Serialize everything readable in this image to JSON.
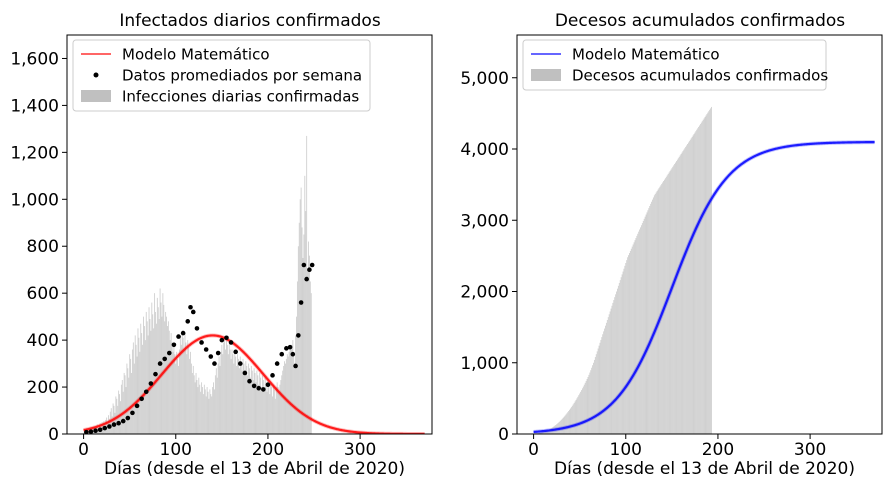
{
  "chart_data": [
    {
      "type": "bar",
      "title": "Infectados diarios confirmados",
      "xlabel": "Días (desde el 13 de Abril de 2020)",
      "ylabel": "",
      "xlim": [
        -18,
        378
      ],
      "ylim": [
        0,
        1700
      ],
      "xticks": [
        0,
        100,
        200,
        300
      ],
      "xtick_labels": [
        "0",
        "100",
        "200",
        "300"
      ],
      "yticks": [
        0,
        200,
        400,
        600,
        800,
        1000,
        1200,
        1400,
        1600
      ],
      "ytick_labels": [
        "0",
        "200",
        "400",
        "600",
        "800",
        "1,000",
        "1,200",
        "1,400",
        "1,600"
      ],
      "legend_position": "top-left",
      "series": [
        {
          "name": "Modelo Matemático",
          "kind": "line",
          "color": "#ff0000",
          "model": {
            "peak_day": 140,
            "peak_value": 420,
            "sigma": 55
          },
          "x_range": [
            0,
            370
          ]
        },
        {
          "name": "Datos promediados por semana",
          "kind": "scatter",
          "color": "#000000",
          "points": [
            [
              3,
              8
            ],
            [
              8,
              10
            ],
            [
              13,
              14
            ],
            [
              18,
              18
            ],
            [
              23,
              25
            ],
            [
              28,
              32
            ],
            [
              33,
              40
            ],
            [
              38,
              46
            ],
            [
              43,
              55
            ],
            [
              48,
              68
            ],
            [
              53,
              90
            ],
            [
              58,
              120
            ],
            [
              63,
              150
            ],
            [
              68,
              180
            ],
            [
              73,
              215
            ],
            [
              78,
              255
            ],
            [
              83,
              300
            ],
            [
              88,
              320
            ],
            [
              93,
              345
            ],
            [
              98,
              380
            ],
            [
              103,
              415
            ],
            [
              108,
              430
            ],
            [
              113,
              480
            ],
            [
              116,
              540
            ],
            [
              119,
              520
            ],
            [
              123,
              450
            ],
            [
              128,
              390
            ],
            [
              133,
              360
            ],
            [
              138,
              330
            ],
            [
              142,
              300
            ],
            [
              146,
              345
            ],
            [
              150,
              400
            ],
            [
              155,
              410
            ],
            [
              160,
              390
            ],
            [
              165,
              350
            ],
            [
              170,
              300
            ],
            [
              175,
              260
            ],
            [
              180,
              225
            ],
            [
              185,
              205
            ],
            [
              190,
              195
            ],
            [
              195,
              190
            ],
            [
              200,
              210
            ],
            [
              205,
              250
            ],
            [
              210,
              300
            ],
            [
              215,
              340
            ],
            [
              220,
              365
            ],
            [
              224,
              370
            ],
            [
              227,
              340
            ],
            [
              230,
              290
            ],
            [
              233,
              420
            ],
            [
              236,
              560
            ],
            [
              239,
              720
            ],
            [
              242,
              660
            ],
            [
              245,
              700
            ],
            [
              248,
              720
            ]
          ]
        },
        {
          "name": "Infecciones diarias confirmadas",
          "kind": "bar",
          "color": "#c0c0c0",
          "x_start": 0,
          "values": [
            5,
            10,
            8,
            15,
            12,
            20,
            14,
            18,
            25,
            16,
            22,
            30,
            28,
            20,
            35,
            40,
            25,
            38,
            45,
            30,
            50,
            42,
            55,
            38,
            60,
            70,
            52,
            80,
            65,
            95,
            110,
            75,
            130,
            120,
            90,
            160,
            150,
            120,
            185,
            170,
            140,
            210,
            230,
            180,
            260,
            250,
            200,
            300,
            280,
            240,
            340,
            320,
            260,
            360,
            390,
            300,
            420,
            380,
            330,
            450,
            410,
            350,
            470,
            430,
            380,
            500,
            460,
            400,
            520,
            480,
            420,
            540,
            490,
            440,
            560,
            510,
            450,
            600,
            520,
            470,
            580,
            540,
            490,
            620,
            560,
            500,
            600,
            550,
            480,
            520,
            500,
            460,
            480,
            440,
            400,
            430,
            390,
            350,
            380,
            340,
            300,
            350,
            320,
            290,
            360,
            420,
            380,
            440,
            410,
            360,
            430,
            390,
            340,
            400,
            370,
            320,
            350,
            300,
            260,
            290,
            250,
            220,
            260,
            230,
            200,
            240,
            210,
            180,
            220,
            200,
            170,
            210,
            190,
            160,
            200,
            180,
            150,
            190,
            170,
            160,
            200,
            220,
            190,
            250,
            280,
            240,
            300,
            330,
            290,
            350,
            380,
            340,
            390,
            410,
            360,
            400,
            380,
            340,
            380,
            360,
            320,
            360,
            340,
            300,
            350,
            330,
            290,
            340,
            320,
            280,
            330,
            310,
            270,
            320,
            300,
            260,
            310,
            290,
            250,
            300,
            280,
            240,
            290,
            270,
            230,
            280,
            260,
            220,
            270,
            250,
            210,
            260,
            240,
            200,
            250,
            230,
            190,
            240,
            220,
            180,
            230,
            210,
            170,
            220,
            200,
            160,
            210,
            190,
            150,
            200,
            220,
            200,
            180,
            210,
            230,
            250,
            270,
            290,
            310,
            300,
            320,
            340,
            330,
            350,
            370,
            360,
            380,
            400,
            350,
            300,
            420,
            500,
            650,
            800,
            900,
            1000,
            1050,
            880,
            750,
            850,
            1100,
            950,
            1270,
            700,
            820,
            760,
            650,
            600
          ]
        }
      ]
    },
    {
      "type": "bar",
      "title": "Decesos acumulados confirmados",
      "xlabel": "Días (desde el 13 de Abril de 2020)",
      "ylabel": "",
      "xlim": [
        -18,
        378
      ],
      "ylim": [
        0,
        5600
      ],
      "xticks": [
        0,
        100,
        200,
        300
      ],
      "xtick_labels": [
        "0",
        "100",
        "200",
        "300"
      ],
      "yticks": [
        0,
        1000,
        2000,
        3000,
        4000,
        5000
      ],
      "ytick_labels": [
        "0",
        "1,000",
        "2,000",
        "3,000",
        "4,000",
        "5,000"
      ],
      "legend_position": "top-left",
      "series": [
        {
          "name": "Modelo Matemático",
          "kind": "line",
          "color": "#0000ff",
          "model": {
            "asymptote": 4100,
            "midpoint_day": 150,
            "rate": 0.033
          },
          "x_range": [
            0,
            370
          ]
        },
        {
          "name": "Decesos acumulados confirmados",
          "kind": "bar",
          "color": "#c0c0c0",
          "x_start": 0,
          "values": [
            2,
            3,
            4,
            6,
            8,
            10,
            12,
            15,
            18,
            22,
            26,
            30,
            35,
            40,
            46,
            52,
            58,
            65,
            72,
            80,
            88,
            97,
            106,
            116,
            126,
            137,
            148,
            160,
            172,
            185,
            198,
            212,
            226,
            241,
            256,
            272,
            288,
            305,
            322,
            340,
            358,
            377,
            396,
            416,
            436,
            457,
            478,
            500,
            522,
            545,
            568,
            592,
            616,
            641,
            666,
            692,
            718,
            745,
            772,
            800,
            830,
            862,
            895,
            930,
            965,
            1000,
            1040,
            1080,
            1120,
            1160,
            1200,
            1240,
            1280,
            1320,
            1360,
            1400,
            1440,
            1480,
            1520,
            1560,
            1600,
            1640,
            1680,
            1720,
            1760,
            1800,
            1840,
            1880,
            1920,
            1960,
            2000,
            2040,
            2080,
            2120,
            2160,
            2200,
            2240,
            2280,
            2320,
            2360,
            2400,
            2440,
            2480,
            2510,
            2540,
            2570,
            2600,
            2630,
            2660,
            2690,
            2720,
            2750,
            2780,
            2810,
            2840,
            2870,
            2900,
            2930,
            2960,
            2990,
            3020,
            3050,
            3080,
            3110,
            3140,
            3170,
            3200,
            3230,
            3260,
            3290,
            3320,
            3350,
            3370,
            3390,
            3410,
            3430,
            3450,
            3470,
            3490,
            3510,
            3530,
            3550,
            3570,
            3590,
            3610,
            3630,
            3650,
            3670,
            3690,
            3710,
            3730,
            3750,
            3770,
            3790,
            3810,
            3830,
            3850,
            3870,
            3890,
            3910,
            3930,
            3950,
            3970,
            3990,
            4010,
            4030,
            4050,
            4070,
            4090,
            4110,
            4130,
            4150,
            4170,
            4190,
            4210,
            4230,
            4250,
            4270,
            4290,
            4310,
            4330,
            4350,
            4370,
            4390,
            4410,
            4430,
            4450,
            4470,
            4490,
            4510,
            4530,
            4550,
            4570,
            4590
          ]
        }
      ]
    }
  ]
}
